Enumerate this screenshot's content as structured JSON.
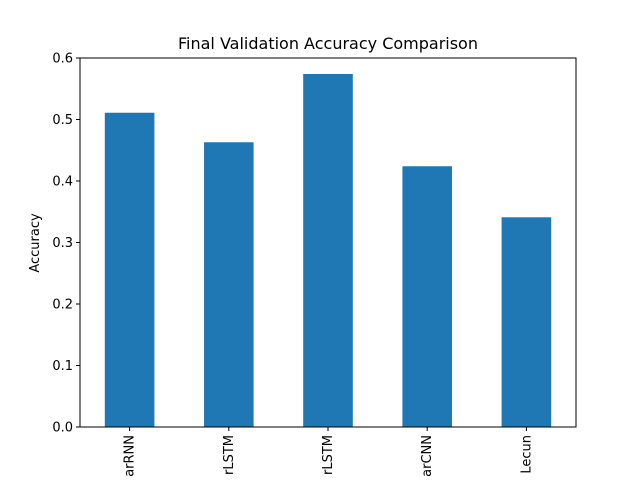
{
  "chart_data": {
    "type": "bar",
    "title": "Final Validation Accuracy Comparison",
    "xlabel": "",
    "ylabel": "Accuracy",
    "categories": [
      "arRNN",
      "rLSTM",
      "rLSTM",
      "arCNN",
      "Lecun"
    ],
    "values": [
      0.511,
      0.463,
      0.574,
      0.424,
      0.341
    ],
    "ylim": [
      0,
      0.6
    ],
    "yticks": [
      "0.0",
      "0.1",
      "0.2",
      "0.3",
      "0.4",
      "0.5",
      "0.6"
    ],
    "bar_color": "#1f77b4",
    "grid": false,
    "legend": false
  }
}
